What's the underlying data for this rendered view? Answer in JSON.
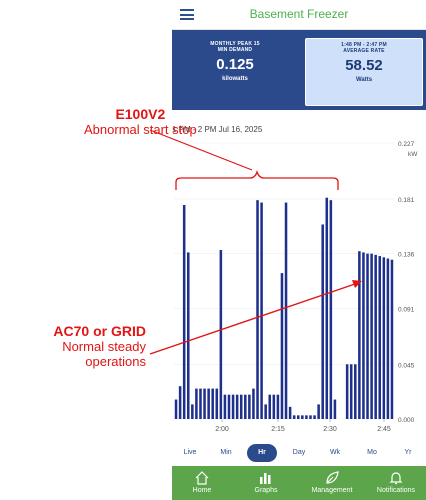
{
  "app": {
    "title": "Basement Freezer"
  },
  "cards": {
    "left": {
      "label_line1": "MONTHLY PEAK 15",
      "label_line2": "MIN DEMAND",
      "value": "0.125",
      "unit": "kilowatts"
    },
    "right": {
      "label_line1": "1:48 PM - 2:47 PM",
      "label_line2": "AVERAGE RATE",
      "value": "58.52",
      "unit": "Watts"
    }
  },
  "range_label": "1 PM - 2 PM Jul 16, 2025",
  "chart_data": {
    "type": "bar",
    "y_unit": "kW",
    "y_ticks": [
      "0.227",
      "0.181",
      "0.136",
      "0.091",
      "0.045",
      "0.000"
    ],
    "x_ticks": [
      "2:00",
      "2:15",
      "2:30",
      "2:45"
    ],
    "ylim": [
      0,
      0.227
    ],
    "color": "#1e2f8c",
    "values": [
      0.016,
      0.027,
      0.176,
      0.137,
      0.012,
      0.025,
      0.025,
      0.025,
      0.025,
      0.025,
      0.025,
      0.139,
      0.02,
      0.02,
      0.02,
      0.02,
      0.02,
      0.02,
      0.02,
      0.025,
      0.18,
      0.178,
      0.012,
      0.02,
      0.02,
      0.02,
      0.12,
      0.178,
      0.01,
      0.003,
      0.003,
      0.003,
      0.003,
      0.003,
      0.003,
      0.012,
      0.16,
      0.182,
      0.18,
      0.016,
      0.0,
      0.0,
      0.045,
      0.045,
      0.045,
      0.138,
      0.137,
      0.136,
      0.136,
      0.135,
      0.134,
      0.133,
      0.132,
      0.131
    ]
  },
  "periods": [
    {
      "label": "Live",
      "active": false
    },
    {
      "label": "Min",
      "active": false
    },
    {
      "label": "Hr",
      "active": true
    },
    {
      "label": "Day",
      "active": false
    },
    {
      "label": "Wk",
      "active": false
    },
    {
      "label": "Mo",
      "active": false
    },
    {
      "label": "Yr",
      "active": false
    }
  ],
  "nav": [
    {
      "label": "Home",
      "icon": "home-icon"
    },
    {
      "label": "Graphs",
      "icon": "graphs-icon"
    },
    {
      "label": "Management",
      "icon": "leaf-icon"
    },
    {
      "label": "Notifications",
      "icon": "bell-icon"
    }
  ],
  "annotations": {
    "top": {
      "title": "E100V2",
      "subtitle": "Abnormal start stop"
    },
    "bottom": {
      "title": "AC70 or GRID",
      "line2": "Normal steady",
      "line3": "operations"
    }
  },
  "colors": {
    "annotation": "#e31414",
    "header_blue": "#2a4a8c",
    "nav_green": "#5ca54a",
    "title_green": "#4caf50"
  }
}
